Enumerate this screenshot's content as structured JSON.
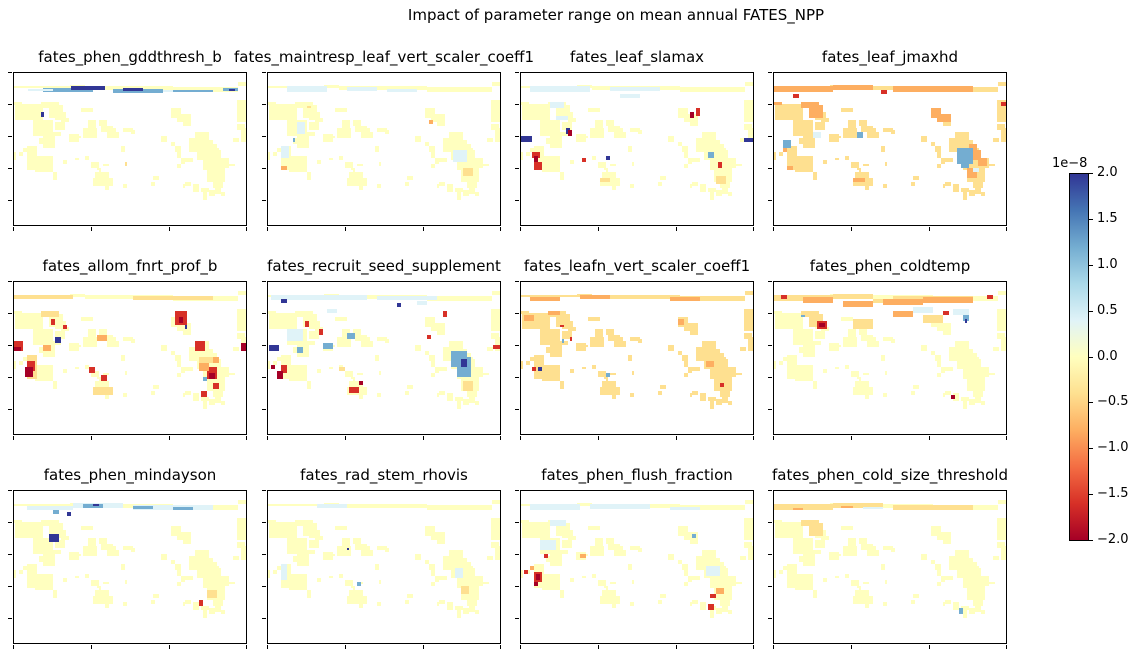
{
  "chart_data": {
    "type": "heatmap",
    "title": "Impact of parameter range on mean annual FATES_NPP",
    "layout": {
      "rows": 3,
      "cols": 4
    },
    "panels": [
      {
        "title": "fates_phen_gddthresh_b",
        "pattern": "boreal_blue"
      },
      {
        "title": "fates_maintresp_leaf_vert_scaler_coeff1",
        "pattern": "mixed_light"
      },
      {
        "title": "fates_leaf_slamax",
        "pattern": "tropical_mixed"
      },
      {
        "title": "fates_leaf_jmaxhd",
        "pattern": "orange_global"
      },
      {
        "title": "fates_allom_fnrt_prof_b",
        "pattern": "tropical_strong"
      },
      {
        "title": "fates_recruit_seed_supplement",
        "pattern": "tropical_blue_red"
      },
      {
        "title": "fates_leafn_vert_scaler_coeff1",
        "pattern": "orange_light"
      },
      {
        "title": "fates_phen_coldtemp",
        "pattern": "orange_north"
      },
      {
        "title": "fates_phen_mindayson",
        "pattern": "boreal_blue_light"
      },
      {
        "title": "fates_rad_stem_rhovis",
        "pattern": "near_zero"
      },
      {
        "title": "fates_phen_flush_fraction",
        "pattern": "tropical_light"
      },
      {
        "title": "fates_phen_cold_size_threshold",
        "pattern": "near_zero_orange"
      }
    ],
    "colorbar": {
      "colormap": "RdYlBu",
      "range": [
        -2.0,
        2.0
      ],
      "ticks": [
        "2.0",
        "1.5",
        "1.0",
        "0.5",
        "0.0",
        "−0.5",
        "−1.0",
        "−1.5",
        "−2.0"
      ],
      "exponent_label": "1e−8"
    },
    "colors": {
      "neutral": "#ffffbf",
      "light_blue": "#e0f3f8",
      "mid_blue": "#74add1",
      "dark_blue": "#313695",
      "light_orange": "#fee090",
      "mid_orange": "#fdae61",
      "red": "#d73027",
      "dark_red": "#a50026"
    }
  }
}
